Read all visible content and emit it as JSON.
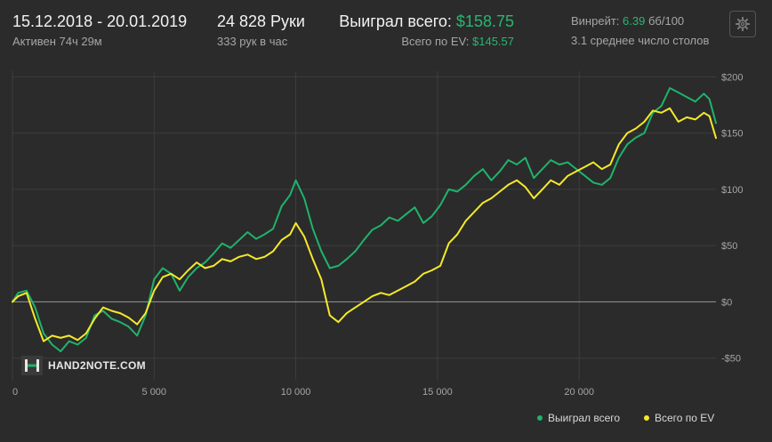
{
  "header": {
    "date_range": "15.12.2018 - 20.01.2019",
    "active_time": "Активен 74ч 29м",
    "hands": "24 828 Руки",
    "hands_per_hour": "333 рук в час",
    "won_total_label": "Выиграл всего:",
    "won_total_value": "$158.75",
    "ev_total_label": "Всего по EV:",
    "ev_total_value": "$145.57",
    "winrate_label": "Винрейт:",
    "winrate_value": "6.39",
    "winrate_unit": "бб/100",
    "avg_tables": "3.1 среднее число столов"
  },
  "settings_icon": "gear-icon",
  "logo": {
    "text": "HAND2NOTE.COM",
    "icon": "h2n-logo-icon"
  },
  "colors": {
    "background": "#2b2b2b",
    "won_series": "#1fb36b",
    "ev_series": "#f5e92a",
    "accent_green": "#2bb56f",
    "grid": "#3d3d3d",
    "zero_line": "#8a8a8a"
  },
  "legend": [
    {
      "label": "Выиграл всего",
      "color": "#1fb36b"
    },
    {
      "label": "Всего по EV",
      "color": "#f5e92a"
    }
  ],
  "chart_data": {
    "type": "line",
    "xlabel": "",
    "ylabel": "",
    "xlim": [
      0,
      24828
    ],
    "ylim": [
      -70,
      205
    ],
    "x_ticks": [
      0,
      5000,
      10000,
      15000,
      20000
    ],
    "x_tick_labels": [
      "0",
      "5 000",
      "10 000",
      "15 000",
      "20 000"
    ],
    "y_ticks": [
      200,
      150,
      100,
      50,
      0,
      -50
    ],
    "y_tick_labels": [
      "$200",
      "$150",
      "$100",
      "$50",
      "$0",
      "-$50"
    ],
    "legend_position": "bottom-right",
    "grid": true,
    "series": [
      {
        "name": "Выиграл всего",
        "color": "#1fb36b",
        "x": [
          0,
          200,
          500,
          800,
          1100,
          1400,
          1700,
          2000,
          2300,
          2600,
          2900,
          3200,
          3500,
          3800,
          4100,
          4400,
          4700,
          5000,
          5300,
          5600,
          5900,
          6200,
          6500,
          6800,
          7100,
          7400,
          7700,
          8000,
          8300,
          8600,
          8900,
          9200,
          9500,
          9800,
          10000,
          10300,
          10600,
          10900,
          11200,
          11500,
          11800,
          12100,
          12400,
          12700,
          13000,
          13300,
          13600,
          13900,
          14200,
          14500,
          14800,
          15100,
          15400,
          15700,
          16000,
          16300,
          16600,
          16900,
          17200,
          17500,
          17800,
          18100,
          18400,
          18700,
          19000,
          19300,
          19600,
          19900,
          20200,
          20500,
          20800,
          21100,
          21400,
          21700,
          22000,
          22300,
          22600,
          22900,
          23200,
          23500,
          23800,
          24100,
          24400,
          24600,
          24828
        ],
        "values": [
          0,
          8,
          10,
          -5,
          -28,
          -38,
          -44,
          -35,
          -38,
          -32,
          -12,
          -8,
          -15,
          -18,
          -22,
          -30,
          -12,
          20,
          30,
          25,
          10,
          22,
          30,
          35,
          43,
          52,
          48,
          55,
          62,
          56,
          60,
          65,
          85,
          95,
          108,
          92,
          65,
          45,
          30,
          32,
          38,
          45,
          55,
          64,
          68,
          75,
          72,
          78,
          84,
          70,
          76,
          86,
          100,
          98,
          104,
          112,
          118,
          108,
          116,
          126,
          122,
          128,
          110,
          118,
          126,
          122,
          124,
          118,
          112,
          106,
          104,
          110,
          128,
          140,
          146,
          150,
          168,
          174,
          190,
          186,
          182,
          178,
          185,
          180,
          158.75
        ]
      },
      {
        "name": "Всего по EV",
        "color": "#f5e92a",
        "x": [
          0,
          200,
          500,
          800,
          1100,
          1400,
          1700,
          2000,
          2300,
          2600,
          2900,
          3200,
          3500,
          3800,
          4100,
          4400,
          4700,
          5000,
          5300,
          5600,
          5900,
          6200,
          6500,
          6800,
          7100,
          7400,
          7700,
          8000,
          8300,
          8600,
          8900,
          9200,
          9500,
          9800,
          10000,
          10300,
          10600,
          10900,
          11200,
          11500,
          11800,
          12100,
          12400,
          12700,
          13000,
          13300,
          13600,
          13900,
          14200,
          14500,
          14800,
          15100,
          15400,
          15700,
          16000,
          16300,
          16600,
          16900,
          17200,
          17500,
          17800,
          18100,
          18400,
          18700,
          19000,
          19300,
          19600,
          19900,
          20200,
          20500,
          20800,
          21100,
          21400,
          21700,
          22000,
          22300,
          22600,
          22900,
          23200,
          23500,
          23800,
          24100,
          24400,
          24600,
          24828
        ],
        "values": [
          0,
          5,
          8,
          -15,
          -35,
          -30,
          -32,
          -30,
          -34,
          -28,
          -15,
          -5,
          -8,
          -10,
          -14,
          -20,
          -10,
          10,
          22,
          25,
          20,
          28,
          35,
          30,
          32,
          38,
          36,
          40,
          42,
          38,
          40,
          45,
          55,
          60,
          70,
          58,
          38,
          20,
          -12,
          -18,
          -10,
          -5,
          0,
          5,
          8,
          6,
          10,
          14,
          18,
          25,
          28,
          32,
          52,
          60,
          72,
          80,
          88,
          92,
          98,
          104,
          108,
          102,
          92,
          100,
          108,
          104,
          112,
          116,
          120,
          124,
          118,
          122,
          140,
          150,
          154,
          160,
          170,
          168,
          172,
          160,
          164,
          162,
          168,
          165,
          145.57
        ]
      }
    ]
  }
}
